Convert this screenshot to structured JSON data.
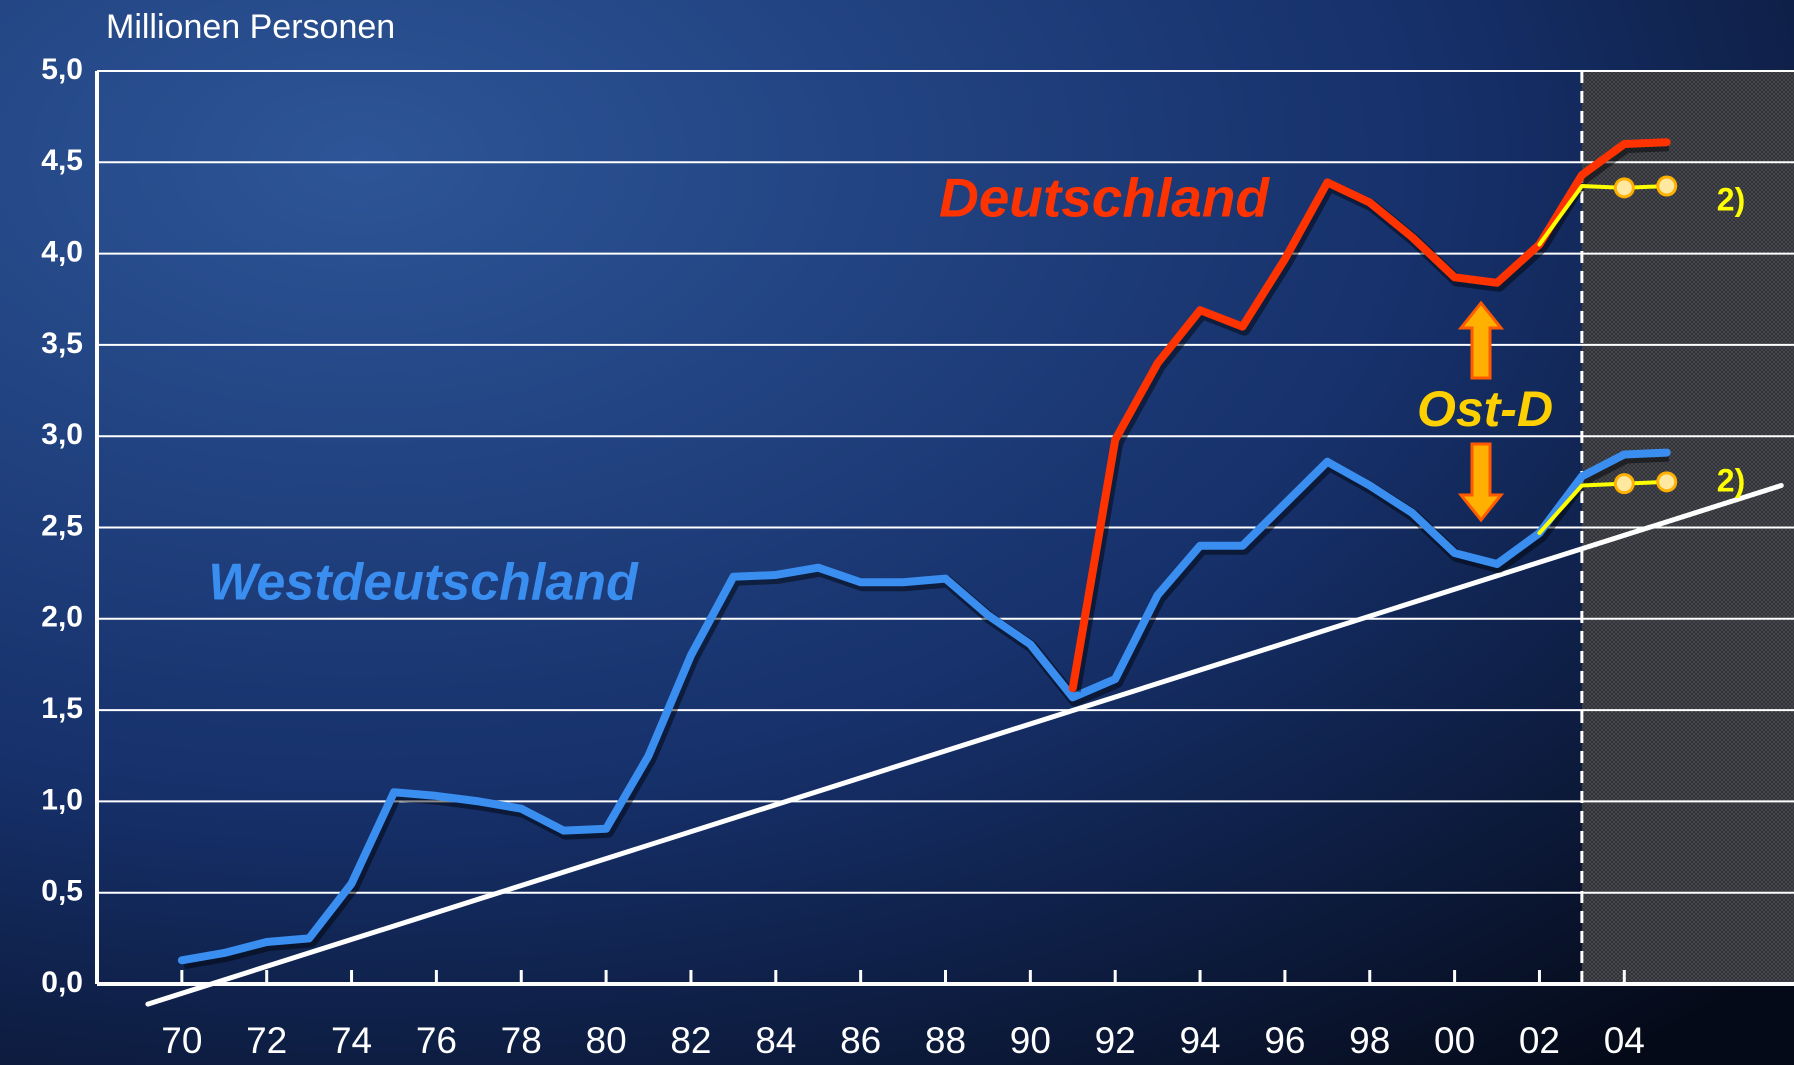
{
  "chart_data": {
    "type": "line",
    "ylabel": "Millionen Personen",
    "xlim": [
      1968,
      2008
    ],
    "ylim": [
      0,
      5
    ],
    "yticks": [
      {
        "value": 0,
        "label": "0,0"
      },
      {
        "value": 0.5,
        "label": "0,5"
      },
      {
        "value": 1,
        "label": "1,0"
      },
      {
        "value": 1.5,
        "label": "1,5"
      },
      {
        "value": 2,
        "label": "2,0"
      },
      {
        "value": 2.5,
        "label": "2,5"
      },
      {
        "value": 3,
        "label": "3,0"
      },
      {
        "value": 3.5,
        "label": "3,5"
      },
      {
        "value": 4,
        "label": "4,0"
      },
      {
        "value": 4.5,
        "label": "4,5"
      },
      {
        "value": 5,
        "label": "5,0"
      }
    ],
    "xticks": [
      {
        "value": 1970,
        "label": "70"
      },
      {
        "value": 1972,
        "label": "72"
      },
      {
        "value": 1974,
        "label": "74"
      },
      {
        "value": 1976,
        "label": "76"
      },
      {
        "value": 1978,
        "label": "78"
      },
      {
        "value": 1980,
        "label": "80"
      },
      {
        "value": 1982,
        "label": "82"
      },
      {
        "value": 1984,
        "label": "84"
      },
      {
        "value": 1986,
        "label": "86"
      },
      {
        "value": 1988,
        "label": "88"
      },
      {
        "value": 1990,
        "label": "90"
      },
      {
        "value": 1992,
        "label": "92"
      },
      {
        "value": 1994,
        "label": "94"
      },
      {
        "value": 1996,
        "label": "96"
      },
      {
        "value": 1998,
        "label": "98"
      },
      {
        "value": 2000,
        "label": "00"
      },
      {
        "value": 2002,
        "label": "02"
      },
      {
        "value": 2004,
        "label": "04"
      }
    ],
    "grid": true,
    "forecast_from": 2003,
    "series": [
      {
        "color": "#ffffff",
        "x": [
          1969.2,
          2007.7
        ],
        "values": [
          -0.11,
          2.73
        ]
      },
      {
        "name": "Westdeutschland",
        "color": "#3a8ef0",
        "x": [
          1970,
          1971,
          1972,
          1973,
          1974,
          1975,
          1976,
          1977,
          1978,
          1979,
          1980,
          1981,
          1982,
          1983,
          1984,
          1985,
          1986,
          1987,
          1988,
          1989,
          1990,
          1991,
          1992,
          1993,
          1994,
          1995,
          1996,
          1997,
          1998,
          1999,
          2000,
          2001,
          2002,
          2003,
          2004,
          2005
        ],
        "values": [
          0.13,
          0.17,
          0.23,
          0.25,
          0.55,
          1.05,
          1.03,
          1.0,
          0.96,
          0.84,
          0.85,
          1.25,
          1.8,
          2.23,
          2.24,
          2.28,
          2.2,
          2.2,
          2.22,
          2.02,
          1.86,
          1.57,
          1.67,
          2.13,
          2.4,
          2.4,
          2.63,
          2.86,
          2.73,
          2.58,
          2.36,
          2.3,
          2.47,
          2.78,
          2.9,
          2.91
        ]
      },
      {
        "name": "Deutschland",
        "color": "#ff3300",
        "x": [
          1991,
          1992,
          1993,
          1994,
          1995,
          1996,
          1997,
          1998,
          1999,
          2000,
          2001,
          2002,
          2003,
          2004,
          2005
        ],
        "values": [
          1.62,
          2.98,
          3.4,
          3.69,
          3.6,
          3.97,
          4.39,
          4.28,
          4.09,
          3.87,
          3.84,
          4.05,
          4.43,
          4.6,
          4.61
        ]
      },
      {
        "name": "2)",
        "color": "#ffff00",
        "x": [
          2002,
          2003,
          2004,
          2005
        ],
        "values": [
          4.05,
          4.37,
          4.36,
          4.37
        ]
      },
      {
        "name": "2)",
        "color": "#ffff00",
        "x": [
          2002,
          2003,
          2004,
          2005
        ],
        "values": [
          2.47,
          2.73,
          2.74,
          2.75
        ]
      }
    ],
    "annotations": [
      {
        "text": "Ost-D"
      }
    ]
  }
}
